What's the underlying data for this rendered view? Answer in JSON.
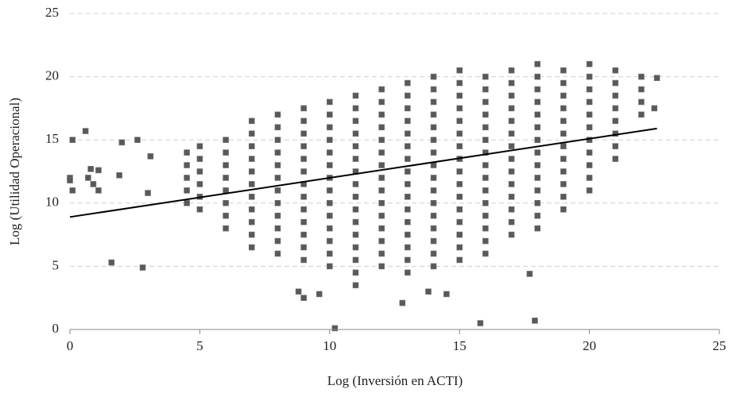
{
  "chart_data": {
    "type": "scatter",
    "x_label": "Log (Inversión en ACTI)",
    "y_label": "Log (Utilidad Operacional)",
    "xlim": [
      0,
      25
    ],
    "ylim": [
      0,
      25
    ],
    "xticks": [
      0,
      5,
      10,
      15,
      20,
      25
    ],
    "yticks": [
      0,
      5,
      10,
      15,
      20,
      25
    ],
    "grid": true,
    "series": [
      {
        "color": "#595959",
        "x": [
          0,
          0,
          0.1,
          0.1,
          0.6,
          0.8,
          0.7,
          0.9,
          1.1,
          1.1,
          1.6,
          1.9,
          2,
          2.6,
          2.8,
          3,
          3.1,
          10.2,
          15.8,
          17.9,
          12.8,
          8.8,
          9,
          9.6,
          11,
          13.8,
          14.5,
          17.7,
          22.5,
          22.6,
          4.5,
          4.5,
          4.5,
          4.5,
          4.5,
          5,
          5,
          5,
          5,
          5,
          5,
          6,
          6,
          6,
          6,
          6,
          6,
          6,
          6,
          7,
          7,
          7,
          7,
          7,
          7,
          7,
          7,
          7,
          7,
          7,
          8,
          8,
          8,
          8,
          8,
          8,
          8,
          8,
          8,
          8,
          8,
          8,
          9,
          9,
          9,
          9,
          9,
          9,
          9,
          9,
          9,
          9,
          9,
          9,
          9,
          10,
          10,
          10,
          10,
          10,
          10,
          10,
          10,
          10,
          10,
          10,
          10,
          10,
          10,
          11,
          11,
          11,
          11,
          11,
          11,
          11,
          11,
          11,
          11,
          11,
          11,
          11,
          11,
          11,
          12,
          12,
          12,
          12,
          12,
          12,
          12,
          12,
          12,
          12,
          12,
          12,
          12,
          12,
          12,
          13,
          13,
          13,
          13,
          13,
          13,
          13,
          13,
          13,
          13,
          13,
          13,
          13,
          13,
          13,
          13,
          14,
          14,
          14,
          14,
          14,
          14,
          14,
          14,
          14,
          14,
          14,
          14,
          14,
          14,
          14,
          14,
          15,
          15,
          15,
          15,
          15,
          15,
          15,
          15,
          15,
          15,
          15,
          15,
          15,
          15,
          15,
          15,
          16,
          16,
          16,
          16,
          16,
          16,
          16,
          16,
          16,
          16,
          16,
          16,
          16,
          16,
          16,
          17,
          17,
          17,
          17,
          17,
          17,
          17,
          17,
          17,
          17,
          17,
          17,
          17,
          17,
          18,
          18,
          18,
          18,
          18,
          18,
          18,
          18,
          18,
          18,
          18,
          18,
          18,
          18,
          19,
          19,
          19,
          19,
          19,
          19,
          19,
          19,
          19,
          19,
          19,
          19,
          20,
          20,
          20,
          20,
          20,
          20,
          20,
          20,
          20,
          20,
          20,
          21,
          21,
          21,
          21,
          21,
          21,
          21,
          21,
          22,
          22,
          22,
          22
        ],
        "values": [
          12,
          11.8,
          11,
          15,
          15.7,
          12.7,
          12,
          11.5,
          11,
          12.6,
          5.3,
          12.2,
          14.8,
          15,
          4.9,
          10.8,
          13.7,
          0.1,
          0.5,
          0.7,
          2.1,
          3,
          2.5,
          2.8,
          3.5,
          3,
          2.8,
          4.4,
          17.5,
          19.9,
          10,
          11,
          12,
          13,
          14,
          9.5,
          10.5,
          11.5,
          12.5,
          13.5,
          14.5,
          8,
          9,
          10,
          11,
          12,
          13,
          14,
          15,
          6.5,
          7.5,
          8.5,
          9.5,
          10.5,
          11.5,
          12.5,
          13.5,
          14.5,
          15.5,
          16.5,
          6,
          7,
          8,
          9,
          10,
          11,
          12,
          13,
          14,
          15,
          16,
          17,
          5.5,
          6.5,
          7.5,
          8.5,
          9.5,
          10.5,
          11.5,
          12.5,
          13.5,
          14.5,
          15.5,
          16.5,
          17.5,
          5,
          6,
          7,
          8,
          9,
          10,
          11,
          12,
          13,
          14,
          15,
          16,
          17,
          18,
          4.5,
          5.5,
          6.5,
          7.5,
          8.5,
          9.5,
          10.5,
          11.5,
          12.5,
          13.5,
          14.5,
          15.5,
          16.5,
          17.5,
          18.5,
          5,
          6,
          7,
          8,
          9,
          10,
          11,
          12,
          13,
          14,
          15,
          16,
          17,
          18,
          19,
          4.5,
          5.5,
          6.5,
          7.5,
          8.5,
          9.5,
          10.5,
          11.5,
          12.5,
          13.5,
          14.5,
          15.5,
          16.5,
          17.5,
          18.5,
          19.5,
          5,
          6,
          7,
          8,
          9,
          10,
          11,
          12,
          13,
          14,
          15,
          16,
          17,
          18,
          19,
          20,
          5.5,
          6.5,
          7.5,
          8.5,
          9.5,
          10.5,
          11.5,
          12.5,
          13.5,
          14.5,
          15.5,
          16.5,
          17.5,
          18.5,
          19.5,
          20.5,
          6,
          7,
          8,
          9,
          10,
          11,
          12,
          13,
          14,
          15,
          16,
          17,
          18,
          19,
          20,
          7.5,
          8.5,
          9.5,
          10.5,
          11.5,
          12.5,
          13.5,
          14.5,
          15.5,
          16.5,
          17.5,
          18.5,
          19.5,
          20.5,
          8,
          9,
          10,
          11,
          12,
          13,
          14,
          15,
          16,
          17,
          18,
          19,
          20,
          21,
          9.5,
          10.5,
          11.5,
          12.5,
          13.5,
          14.5,
          15.5,
          16.5,
          17.5,
          18.5,
          19.5,
          20.5,
          11,
          12,
          13,
          14,
          15,
          16,
          17,
          18,
          19,
          20,
          21,
          13.5,
          14.5,
          15.5,
          16.5,
          17.5,
          18.5,
          19.5,
          20.5,
          17,
          18,
          19,
          20
        ]
      }
    ],
    "trend_line": {
      "x": [
        0,
        22.6
      ],
      "values": [
        8.9,
        15.9
      ],
      "color": "#000000"
    }
  }
}
